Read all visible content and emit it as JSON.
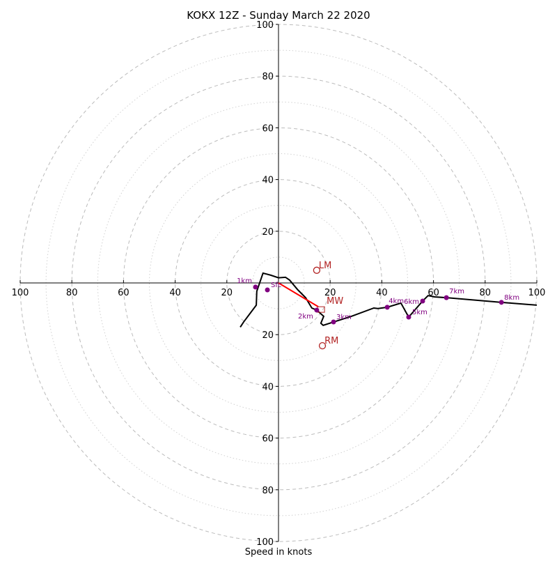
{
  "chart_data": {
    "type": "hodograph",
    "title": "KOKX 12Z - Sunday March 22 2020",
    "xlabel": "Speed in knots",
    "range": [
      -100,
      100
    ],
    "ring_major": [
      20,
      40,
      60,
      80,
      100
    ],
    "ring_minor": [
      10,
      30,
      50,
      70,
      90
    ],
    "x_ticks": [
      "100",
      "80",
      "60",
      "40",
      "20",
      "20",
      "40",
      "60",
      "80",
      "100"
    ],
    "x_tick_values": [
      -100,
      -80,
      -60,
      -40,
      -20,
      20,
      40,
      60,
      80,
      100
    ],
    "y_ticks": [
      "100",
      "80",
      "60",
      "40",
      "20",
      "20",
      "40",
      "60",
      "80",
      "100"
    ],
    "y_tick_values": [
      100,
      80,
      60,
      40,
      20,
      -20,
      -40,
      -60,
      -80,
      -100
    ],
    "trace": [
      [
        -14.8,
        -17.1
      ],
      [
        -13.5,
        -15.1
      ],
      [
        -8.6,
        -8.6
      ],
      [
        -8.4,
        -3.2
      ],
      [
        -6,
        3.8
      ],
      [
        -3,
        3
      ],
      [
        0,
        2
      ],
      [
        2.7,
        2.2
      ],
      [
        4.3,
        1.1
      ],
      [
        7.5,
        -2.7
      ],
      [
        10.5,
        -5.7
      ],
      [
        12.9,
        -9.7
      ],
      [
        14.8,
        -10.5
      ],
      [
        17.5,
        -12.9
      ],
      [
        16.4,
        -15.6
      ],
      [
        17.3,
        -16.4
      ],
      [
        21.3,
        -15.1
      ],
      [
        28,
        -13
      ],
      [
        36.9,
        -9.7
      ],
      [
        38.5,
        -9.9
      ],
      [
        42.1,
        -9.4
      ],
      [
        47.4,
        -7.8
      ],
      [
        50.4,
        -13.2
      ],
      [
        55.8,
        -7
      ],
      [
        57.9,
        -4.9
      ],
      [
        60.4,
        -5.4
      ],
      [
        65,
        -5.7
      ],
      [
        86.3,
        -7.5
      ],
      [
        100,
        -8.6
      ]
    ],
    "points": [
      {
        "label": "Sfc",
        "u": -4.3,
        "v": -2.7
      },
      {
        "label": "1km",
        "u": -8.9,
        "v": -1.6
      },
      {
        "label": "2km",
        "u": 14.8,
        "v": -10.5
      },
      {
        "label": "3km",
        "u": 21.3,
        "v": -15.1
      },
      {
        "label": "4km",
        "u": 42.1,
        "v": -9.4
      },
      {
        "label": "5km",
        "u": 50.4,
        "v": -13.2
      },
      {
        "label": "6km",
        "u": 55.8,
        "v": -7
      },
      {
        "label": "7km",
        "u": 65,
        "v": -5.7
      },
      {
        "label": "8km",
        "u": 86.3,
        "v": -7.5
      }
    ],
    "motions": [
      {
        "label": "LM",
        "u": 14.8,
        "v": 4.9
      },
      {
        "label": "RM",
        "u": 17,
        "v": -24.3
      },
      {
        "label": "MW",
        "u": 15.4,
        "v": -9.2
      }
    ],
    "colors": {
      "trace": "#000000",
      "points": "#800080",
      "motion": "#b22222",
      "mean_wind": "#ff0000",
      "grid": "#bbbbbb"
    }
  }
}
